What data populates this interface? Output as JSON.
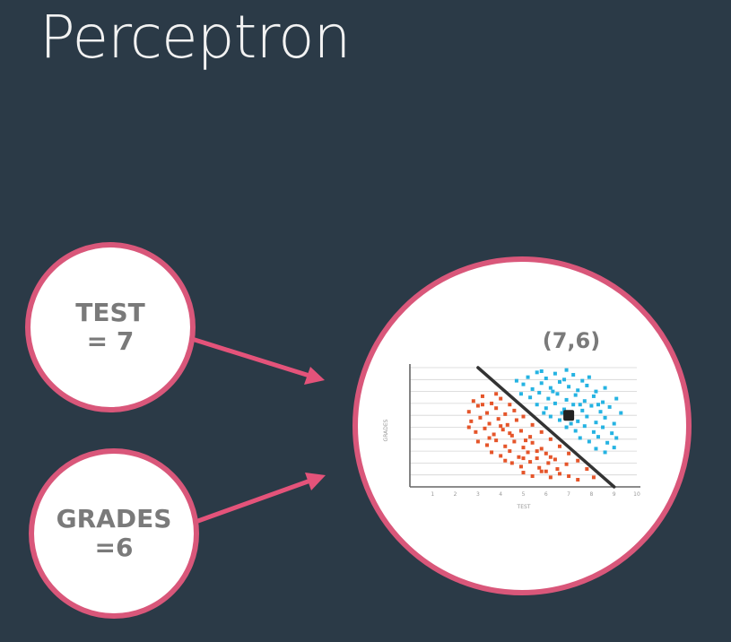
{
  "title": "Perceptron",
  "inputs": [
    {
      "name": "TEST",
      "value": "= 7"
    },
    {
      "name": "GRADES",
      "value": "=6"
    }
  ],
  "point_label": "(7,6)",
  "colors": {
    "background": "#2b3a47",
    "node_border": "#d9577a",
    "arrow": "#e4537a",
    "class_red": "#e5552a",
    "class_blue": "#25b3e2",
    "boundary": "#333333"
  },
  "chart_data": {
    "type": "scatter",
    "xlabel": "TEST",
    "ylabel": "GRADES",
    "xlim": [
      0,
      10
    ],
    "ylim": [
      0,
      10
    ],
    "x_ticks": [
      1,
      2,
      3,
      4,
      5,
      6,
      7,
      8,
      9,
      10
    ],
    "grid": true,
    "highlight_point": {
      "x": 7,
      "y": 6,
      "label": "(7,6)"
    },
    "decision_boundary": {
      "from": [
        3,
        10
      ],
      "to": [
        9,
        0
      ]
    },
    "series": [
      {
        "color": "#e5552a",
        "points": [
          [
            2.8,
            7.2
          ],
          [
            3.2,
            7.6
          ],
          [
            3.6,
            7.0
          ],
          [
            4.0,
            7.4
          ],
          [
            2.6,
            6.3
          ],
          [
            3.0,
            6.8
          ],
          [
            3.4,
            6.2
          ],
          [
            3.8,
            6.6
          ],
          [
            4.2,
            6.1
          ],
          [
            2.7,
            5.5
          ],
          [
            3.1,
            5.8
          ],
          [
            3.5,
            5.3
          ],
          [
            3.9,
            5.7
          ],
          [
            4.3,
            5.2
          ],
          [
            4.7,
            5.6
          ],
          [
            2.9,
            4.6
          ],
          [
            3.3,
            4.9
          ],
          [
            3.7,
            4.4
          ],
          [
            4.1,
            4.8
          ],
          [
            4.5,
            4.3
          ],
          [
            4.9,
            4.7
          ],
          [
            5.3,
            4.2
          ],
          [
            3.0,
            3.8
          ],
          [
            3.4,
            3.5
          ],
          [
            3.8,
            3.9
          ],
          [
            4.2,
            3.4
          ],
          [
            4.6,
            3.8
          ],
          [
            5.0,
            3.3
          ],
          [
            5.4,
            3.7
          ],
          [
            5.8,
            3.2
          ],
          [
            3.6,
            2.9
          ],
          [
            4.0,
            2.6
          ],
          [
            4.4,
            3.0
          ],
          [
            4.8,
            2.5
          ],
          [
            5.2,
            2.9
          ],
          [
            5.6,
            2.4
          ],
          [
            6.0,
            2.8
          ],
          [
            6.4,
            2.3
          ],
          [
            4.5,
            2.0
          ],
          [
            4.9,
            1.7
          ],
          [
            5.3,
            2.1
          ],
          [
            5.7,
            1.6
          ],
          [
            6.1,
            2.0
          ],
          [
            6.5,
            1.5
          ],
          [
            6.9,
            1.9
          ],
          [
            5.0,
            1.2
          ],
          [
            5.4,
            0.9
          ],
          [
            5.8,
            1.3
          ],
          [
            6.2,
            0.8
          ],
          [
            6.6,
            1.1
          ],
          [
            7.0,
            0.9
          ],
          [
            7.4,
            0.6
          ],
          [
            4.6,
            6.4
          ],
          [
            5.0,
            5.9
          ],
          [
            5.4,
            5.2
          ],
          [
            5.8,
            4.6
          ],
          [
            6.2,
            4.0
          ],
          [
            6.6,
            3.4
          ],
          [
            7.0,
            2.8
          ],
          [
            7.4,
            2.2
          ],
          [
            7.8,
            1.5
          ],
          [
            8.1,
            0.8
          ],
          [
            3.2,
            6.9
          ],
          [
            2.6,
            5.0
          ],
          [
            3.5,
            4.1
          ],
          [
            4.0,
            5.1
          ],
          [
            4.4,
            4.5
          ],
          [
            5.1,
            3.9
          ],
          [
            5.6,
            3.0
          ],
          [
            6.2,
            2.5
          ],
          [
            4.2,
            2.2
          ],
          [
            5.0,
            2.4
          ],
          [
            6.0,
            1.3
          ],
          [
            3.8,
            7.8
          ],
          [
            4.4,
            6.9
          ]
        ]
      },
      {
        "color": "#25b3e2",
        "points": [
          [
            5.2,
            9.2
          ],
          [
            5.6,
            9.6
          ],
          [
            6.0,
            9.1
          ],
          [
            6.4,
            9.5
          ],
          [
            6.8,
            9.0
          ],
          [
            7.2,
            9.4
          ],
          [
            7.6,
            8.9
          ],
          [
            5.0,
            8.6
          ],
          [
            5.4,
            8.2
          ],
          [
            5.8,
            8.7
          ],
          [
            6.2,
            8.3
          ],
          [
            6.6,
            8.8
          ],
          [
            7.0,
            8.4
          ],
          [
            7.4,
            8.1
          ],
          [
            7.8,
            8.5
          ],
          [
            8.2,
            8.0
          ],
          [
            4.9,
            7.8
          ],
          [
            5.3,
            7.5
          ],
          [
            5.7,
            7.9
          ],
          [
            6.1,
            7.4
          ],
          [
            6.5,
            7.8
          ],
          [
            6.9,
            7.3
          ],
          [
            7.3,
            7.7
          ],
          [
            7.7,
            7.2
          ],
          [
            8.1,
            7.6
          ],
          [
            8.5,
            7.1
          ],
          [
            5.6,
            6.9
          ],
          [
            6.0,
            6.6
          ],
          [
            6.4,
            7.0
          ],
          [
            6.8,
            6.5
          ],
          [
            7.2,
            6.9
          ],
          [
            7.6,
            6.4
          ],
          [
            8.0,
            6.8
          ],
          [
            8.4,
            6.3
          ],
          [
            8.8,
            6.7
          ],
          [
            6.2,
            5.9
          ],
          [
            6.6,
            5.6
          ],
          [
            7.0,
            6.0
          ],
          [
            7.4,
            5.5
          ],
          [
            7.8,
            5.9
          ],
          [
            8.2,
            5.4
          ],
          [
            8.6,
            5.8
          ],
          [
            9.0,
            5.3
          ],
          [
            6.9,
            5.0
          ],
          [
            7.3,
            4.7
          ],
          [
            7.7,
            5.1
          ],
          [
            8.1,
            4.6
          ],
          [
            8.5,
            5.0
          ],
          [
            8.9,
            4.5
          ],
          [
            7.5,
            4.1
          ],
          [
            7.9,
            3.8
          ],
          [
            8.3,
            4.2
          ],
          [
            8.7,
            3.7
          ],
          [
            9.1,
            4.1
          ],
          [
            8.2,
            3.2
          ],
          [
            8.6,
            2.9
          ],
          [
            9.0,
            3.3
          ],
          [
            4.7,
            8.9
          ],
          [
            5.8,
            9.7
          ],
          [
            6.9,
            9.8
          ],
          [
            7.9,
            9.2
          ],
          [
            8.6,
            8.3
          ],
          [
            9.1,
            7.4
          ],
          [
            9.3,
            6.2
          ],
          [
            5.9,
            6.2
          ],
          [
            6.7,
            6.2
          ],
          [
            7.1,
            5.3
          ],
          [
            6.3,
            8.0
          ],
          [
            7.5,
            6.9
          ],
          [
            8.3,
            6.9
          ]
        ]
      }
    ]
  }
}
